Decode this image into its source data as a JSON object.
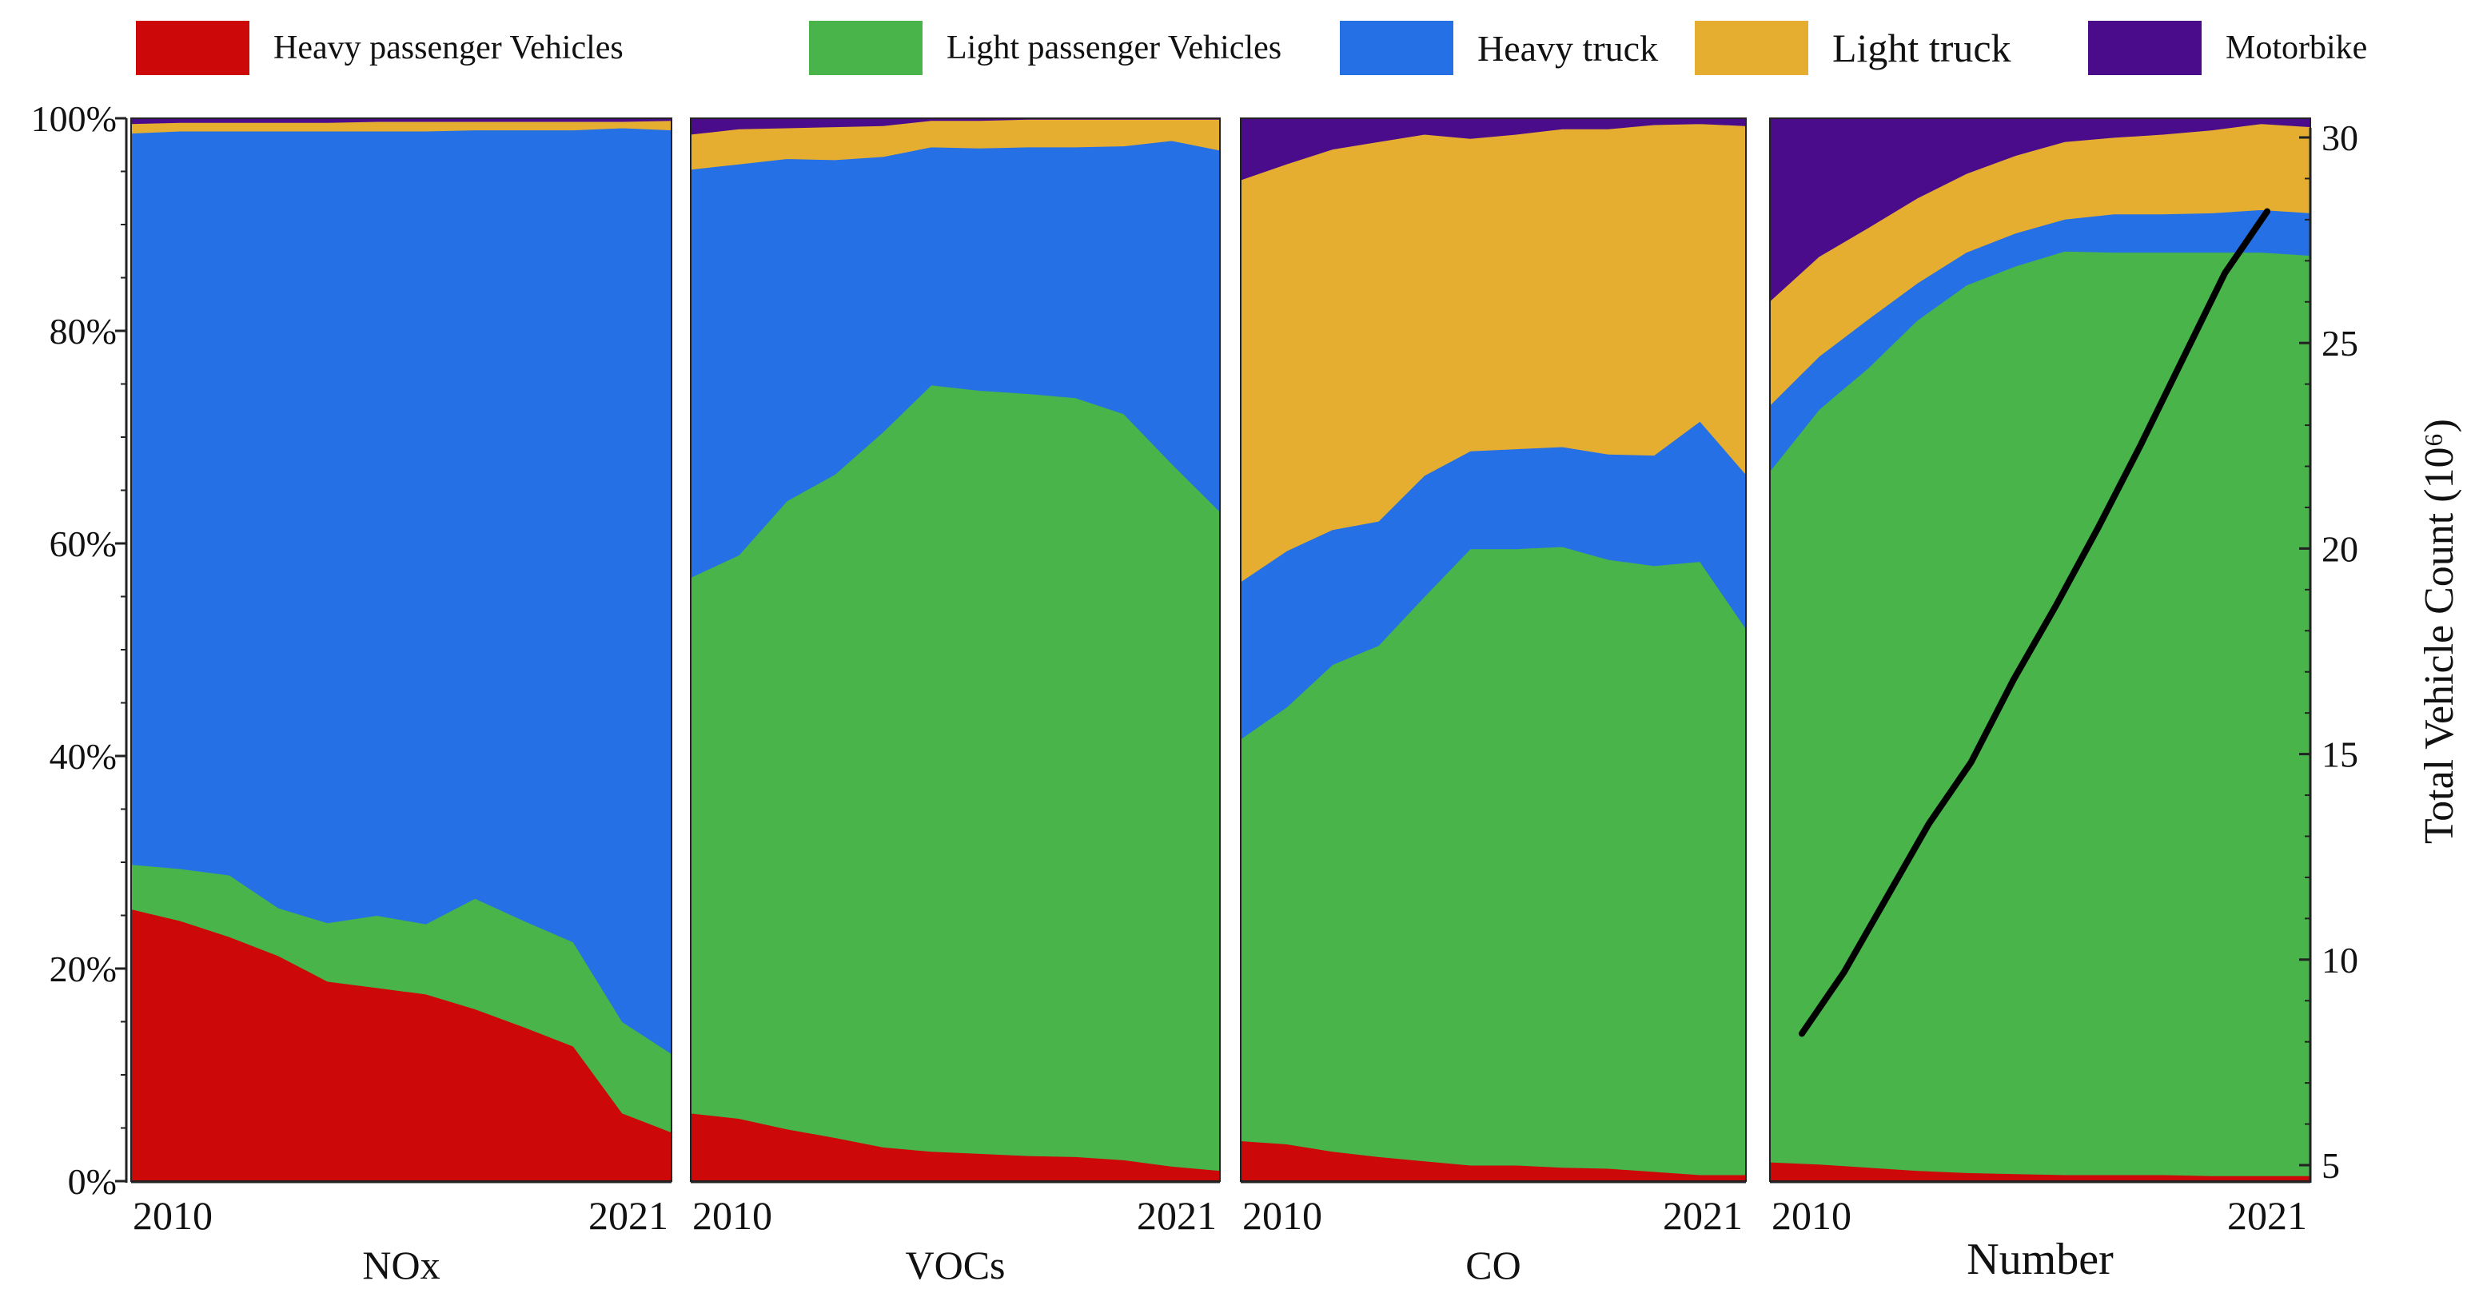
{
  "chart_data": {
    "type": "area",
    "stacked_percent": true,
    "colors": {
      "Heavy passenger Vehicles": "#cc0808",
      "Light passenger Vehicles": "#48b44a",
      "Heavy truck": "#2570e4",
      "Light truck": "#e6ae30",
      "Motorbike": "#4b0c8c",
      "count_line": "#000000"
    },
    "legend": {
      "position": "top",
      "entries": [
        "Heavy passenger Vehicles",
        "Light passenger Vehicles",
        "Heavy truck",
        "Light truck",
        "Motorbike"
      ]
    },
    "y_left": {
      "range": [
        0,
        100
      ],
      "ticks": [
        "0%",
        "20%",
        "40%",
        "60%",
        "80%",
        "100%"
      ]
    },
    "y_right": {
      "label": "Total Vehicle Count (10⁶)",
      "range": [
        5,
        30
      ],
      "ticks": [
        "5",
        "10",
        "15",
        "20",
        "25",
        "30"
      ]
    },
    "x_ticks": [
      "2010",
      "2021"
    ],
    "x": [
      2010,
      2011,
      2012,
      2013,
      2014,
      2015,
      2016,
      2017,
      2018,
      2019,
      2020,
      2021
    ],
    "panels": [
      {
        "name": "NOx",
        "series": [
          {
            "name": "Heavy passenger Vehicles",
            "values": [
              25.6,
              24.5,
              23.0,
              21.2,
              18.8,
              18.2,
              17.6,
              16.2,
              14.5,
              12.7,
              6.4,
              4.6
            ]
          },
          {
            "name": "Light passenger Vehicles",
            "values": [
              4.2,
              4.9,
              5.8,
              4.5,
              5.5,
              6.8,
              6.6,
              10.4,
              10.0,
              9.8,
              8.6,
              7.4
            ]
          },
          {
            "name": "Heavy truck",
            "values": [
              68.8,
              69.4,
              70.0,
              73.1,
              74.5,
              73.8,
              74.6,
              72.3,
              74.4,
              76.4,
              84.1,
              86.9
            ]
          },
          {
            "name": "Light truck",
            "values": [
              0.9,
              0.8,
              0.8,
              0.8,
              0.8,
              0.9,
              0.9,
              0.8,
              0.8,
              0.8,
              0.6,
              0.9
            ]
          },
          {
            "name": "Motorbike",
            "values": [
              0.5,
              0.4,
              0.4,
              0.4,
              0.4,
              0.3,
              0.3,
              0.3,
              0.3,
              0.3,
              0.3,
              0.2
            ]
          }
        ]
      },
      {
        "name": "VOCs",
        "series": [
          {
            "name": "Heavy passenger Vehicles",
            "values": [
              6.4,
              5.9,
              4.9,
              4.1,
              3.2,
              2.8,
              2.6,
              2.4,
              2.3,
              2.0,
              1.4,
              1.0
            ]
          },
          {
            "name": "Light passenger Vehicles",
            "values": [
              50.4,
              53.0,
              59.1,
              62.4,
              67.3,
              72.1,
              71.8,
              71.7,
              71.4,
              70.2,
              66.1,
              62.0
            ]
          },
          {
            "name": "Heavy truck",
            "values": [
              38.4,
              36.8,
              32.2,
              29.6,
              25.9,
              22.4,
              22.8,
              23.2,
              23.6,
              25.2,
              30.4,
              34.0
            ]
          },
          {
            "name": "Light truck",
            "values": [
              3.3,
              3.3,
              2.9,
              3.1,
              2.9,
              2.5,
              2.6,
              2.6,
              2.6,
              2.5,
              2.0,
              2.9
            ]
          },
          {
            "name": "Motorbike",
            "values": [
              1.5,
              1.0,
              0.9,
              0.8,
              0.7,
              0.2,
              0.2,
              0.1,
              0.1,
              0.1,
              0.1,
              0.1
            ]
          }
        ]
      },
      {
        "name": "CO",
        "series": [
          {
            "name": "Heavy passenger Vehicles",
            "values": [
              3.8,
              3.5,
              2.8,
              2.3,
              1.9,
              1.5,
              1.5,
              1.3,
              1.2,
              0.9,
              0.6,
              0.6
            ]
          },
          {
            "name": "Light passenger Vehicles",
            "values": [
              37.8,
              41.1,
              45.8,
              48.1,
              53.1,
              58.0,
              58.0,
              58.4,
              57.3,
              57.0,
              57.7,
              51.4
            ]
          },
          {
            "name": "Heavy truck",
            "values": [
              14.8,
              14.7,
              12.7,
              11.7,
              11.4,
              9.2,
              9.4,
              9.4,
              9.9,
              10.4,
              13.2,
              14.5
            ]
          },
          {
            "name": "Light truck",
            "values": [
              37.8,
              36.4,
              35.8,
              35.7,
              32.1,
              29.4,
              29.6,
              29.9,
              30.6,
              31.1,
              28.0,
              32.8
            ]
          },
          {
            "name": "Motorbike",
            "values": [
              5.8,
              4.3,
              2.9,
              2.2,
              1.5,
              1.9,
              1.5,
              1.0,
              1.0,
              0.6,
              0.5,
              0.7
            ]
          }
        ]
      },
      {
        "name": "Number",
        "series": [
          {
            "name": "Heavy passenger Vehicles",
            "values": [
              1.8,
              1.6,
              1.3,
              1.0,
              0.8,
              0.7,
              0.6,
              0.6,
              0.6,
              0.5,
              0.5,
              0.5
            ]
          },
          {
            "name": "Light passenger Vehicles",
            "values": [
              65.0,
              71.0,
              75.2,
              80.0,
              83.5,
              85.4,
              86.9,
              86.8,
              86.8,
              86.9,
              86.9,
              86.6
            ]
          },
          {
            "name": "Heavy truck",
            "values": [
              6.2,
              5.0,
              4.6,
              3.5,
              3.1,
              3.1,
              3.0,
              3.6,
              3.6,
              3.7,
              4.0,
              4.0
            ]
          },
          {
            "name": "Light truck",
            "values": [
              9.8,
              9.4,
              8.6,
              8.0,
              7.4,
              7.3,
              7.3,
              7.2,
              7.5,
              7.8,
              8.1,
              8.1
            ]
          },
          {
            "name": "Motorbike",
            "values": [
              17.2,
              13.0,
              10.3,
              7.5,
              5.2,
              3.5,
              2.2,
              1.8,
              1.5,
              1.1,
              0.5,
              0.8
            ]
          }
        ],
        "total_vehicle_count": {
          "x": [
            2010,
            2011,
            2012,
            2013,
            2014,
            2015,
            2016,
            2017,
            2018,
            2019,
            2020,
            2021
          ],
          "values": [
            8.2,
            9.7,
            11.5,
            13.3,
            14.8,
            16.8,
            18.6,
            20.5,
            22.5,
            24.6,
            26.7,
            28.2
          ]
        }
      }
    ]
  }
}
